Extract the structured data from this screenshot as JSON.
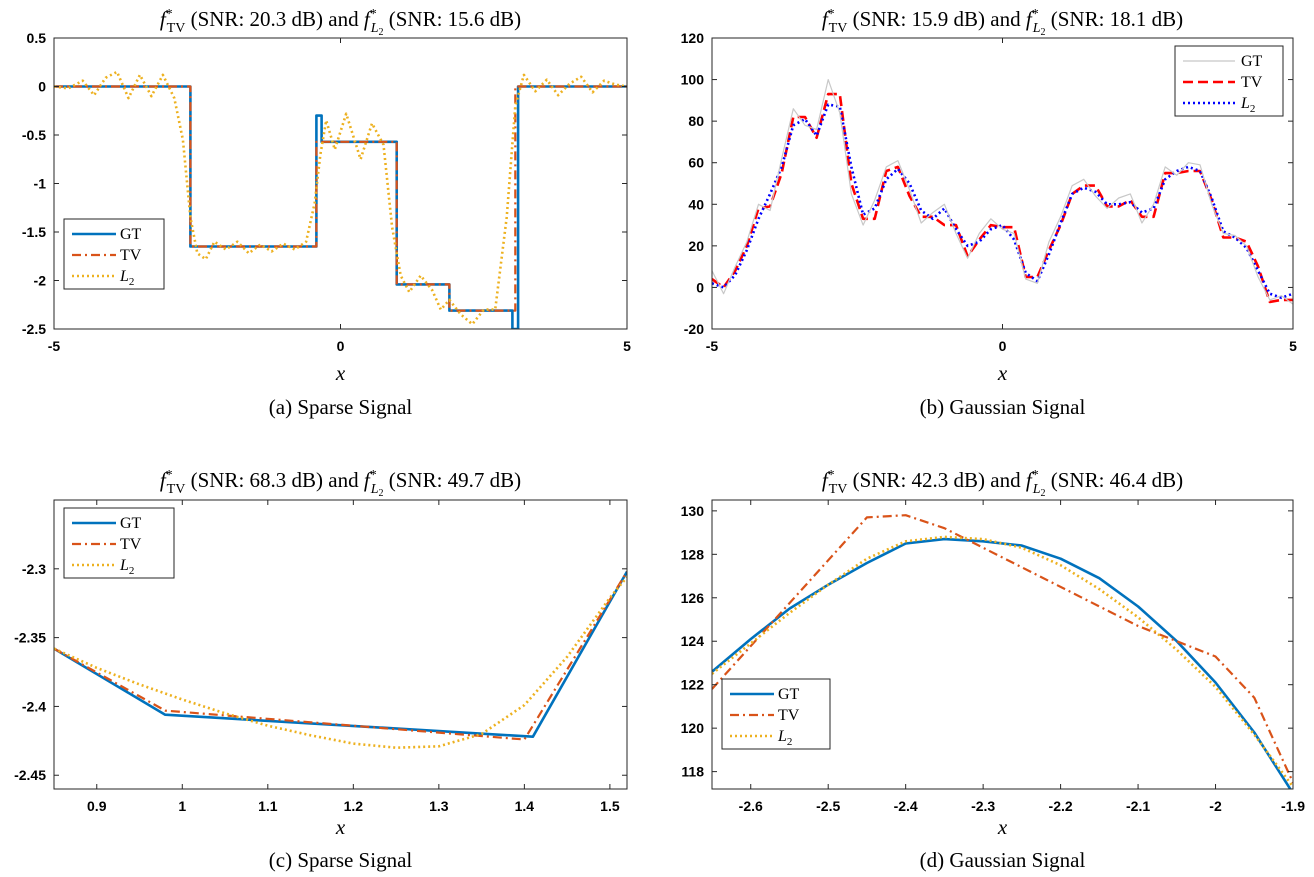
{
  "colors": {
    "gt": "#0072BD",
    "tv": "#D95319",
    "l2": "#EDB120",
    "gt_gray": "#c8c8c8",
    "tv_red": "#ff0000",
    "l2_blue": "#0000ff"
  },
  "chart_data": [
    {
      "type": "line",
      "title": "f*_TV (SNR: 20.3 dB) and f*_L2 (SNR: 15.6 dB)",
      "snr_tv": "20.3 dB",
      "snr_l2": "15.6 dB",
      "xlabel": "x",
      "caption": "(a) Sparse Signal",
      "xlim": [
        -5,
        5
      ],
      "ylim": [
        -2.5,
        0.5
      ],
      "xticks": [
        "-5",
        "0",
        "5"
      ],
      "yticks": [
        "0.5",
        "0",
        "-0.5",
        "-1",
        "-1.5",
        "-2",
        "-2.5"
      ],
      "legend": [
        "GT",
        "TV",
        "L2"
      ],
      "legend_position": "bottom-left",
      "series": [
        {
          "name": "GT",
          "style": "solid",
          "x": [
            -5,
            -2.62,
            -2.62,
            -0.42,
            -0.42,
            -0.33,
            -0.33,
            0.98,
            0.98,
            1.9,
            1.9,
            3.0,
            3.0,
            3.1,
            3.1,
            5
          ],
          "y": [
            0,
            0,
            -1.65,
            -1.65,
            -0.3,
            -0.3,
            -0.57,
            -0.57,
            -2.04,
            -2.04,
            -2.31,
            -2.31,
            -2.5,
            -2.5,
            0,
            0
          ]
        },
        {
          "name": "TV",
          "style": "dashdot",
          "x": [
            -5,
            -2.62,
            -2.62,
            -0.42,
            -0.42,
            0.98,
            0.98,
            1.9,
            1.9,
            3.05,
            3.05,
            5
          ],
          "y": [
            0,
            0,
            -1.65,
            -1.65,
            -0.57,
            -0.57,
            -2.04,
            -2.04,
            -2.31,
            -2.31,
            0,
            0
          ]
        },
        {
          "name": "L2",
          "style": "dotted",
          "x": [
            -5,
            -4.75,
            -4.5,
            -4.3,
            -4.1,
            -3.9,
            -3.7,
            -3.5,
            -3.3,
            -3.1,
            -2.9,
            -2.75,
            -2.62,
            -2.5,
            -2.35,
            -2.2,
            -2.0,
            -1.8,
            -1.6,
            -1.4,
            -1.2,
            -1.0,
            -0.8,
            -0.6,
            -0.45,
            -0.35,
            -0.25,
            -0.1,
            0.1,
            0.35,
            0.55,
            0.75,
            0.9,
            1.05,
            1.2,
            1.4,
            1.6,
            1.75,
            1.9,
            2.1,
            2.3,
            2.5,
            2.7,
            2.9,
            3.05,
            3.2,
            3.4,
            3.6,
            3.8,
            4.0,
            4.2,
            4.4,
            4.6,
            4.8,
            5.0
          ],
          "y": [
            0.0,
            -0.02,
            0.06,
            -0.09,
            0.09,
            0.15,
            -0.12,
            0.12,
            -0.1,
            0.12,
            -0.12,
            -0.55,
            -1.35,
            -1.72,
            -1.78,
            -1.6,
            -1.68,
            -1.6,
            -1.72,
            -1.63,
            -1.7,
            -1.62,
            -1.68,
            -1.6,
            -1.2,
            -0.7,
            -0.35,
            -0.65,
            -0.28,
            -0.75,
            -0.38,
            -0.6,
            -1.45,
            -1.95,
            -2.12,
            -1.95,
            -2.1,
            -2.3,
            -2.2,
            -2.35,
            -2.45,
            -2.3,
            -2.3,
            -1.35,
            -0.2,
            0.12,
            -0.05,
            0.07,
            -0.09,
            0.03,
            0.1,
            -0.06,
            0.06,
            0.02,
            0.0
          ]
        }
      ]
    },
    {
      "type": "line",
      "title": "f*_TV (SNR: 15.9 dB) and f*_L2 (SNR: 18.1 dB)",
      "snr_tv": "15.9 dB",
      "snr_l2": "18.1 dB",
      "xlabel": "x",
      "caption": "(b) Gaussian Signal",
      "xlim": [
        -5,
        5
      ],
      "ylim": [
        -20,
        120
      ],
      "xticks": [
        "-5",
        "0",
        "5"
      ],
      "yticks": [
        "120",
        "100",
        "80",
        "60",
        "40",
        "20",
        "0",
        "-20"
      ],
      "legend": [
        "GT",
        "TV",
        "L2"
      ],
      "legend_position": "top-right",
      "series": [
        {
          "name": "TV",
          "style": "dashed",
          "x": [
            -5.0,
            -4.8,
            -4.6,
            -4.4,
            -4.2,
            -4.0,
            -3.8,
            -3.6,
            -3.4,
            -3.2,
            -3.0,
            -2.8,
            -2.6,
            -2.4,
            -2.2,
            -2.0,
            -1.8,
            -1.6,
            -1.4,
            -1.2,
            -1.0,
            -0.8,
            -0.6,
            -0.4,
            -0.2,
            0.0,
            0.2,
            0.4,
            0.6,
            0.8,
            1.0,
            1.2,
            1.4,
            1.6,
            1.8,
            2.0,
            2.2,
            2.4,
            2.6,
            2.8,
            3.0,
            3.2,
            3.4,
            3.6,
            3.8,
            4.0,
            4.2,
            4.4,
            4.6,
            4.8,
            5.0
          ],
          "y": [
            4,
            0,
            8,
            20,
            38,
            39,
            55,
            82,
            82,
            72,
            93,
            93,
            50,
            33,
            33,
            56,
            58,
            44,
            34,
            34,
            30,
            30,
            15,
            23,
            30,
            29,
            29,
            5,
            5,
            18,
            30,
            45,
            49,
            49,
            39,
            39,
            42,
            34,
            34,
            55,
            55,
            56,
            56,
            42,
            24,
            24,
            22,
            10,
            -7,
            -6,
            -6
          ]
        },
        {
          "name": "L2",
          "style": "dotted",
          "x": [
            -5.0,
            -4.8,
            -4.6,
            -4.4,
            -4.2,
            -4.0,
            -3.8,
            -3.6,
            -3.4,
            -3.2,
            -3.0,
            -2.8,
            -2.6,
            -2.4,
            -2.2,
            -2.0,
            -1.8,
            -1.6,
            -1.4,
            -1.2,
            -1.0,
            -0.8,
            -0.6,
            -0.4,
            -0.2,
            0.0,
            0.2,
            0.4,
            0.6,
            0.8,
            1.0,
            1.2,
            1.4,
            1.6,
            1.8,
            2.0,
            2.2,
            2.4,
            2.6,
            2.8,
            3.0,
            3.2,
            3.4,
            3.6,
            3.8,
            4.0,
            4.2,
            4.4,
            4.6,
            4.8,
            5.0
          ],
          "y": [
            2,
            0,
            6,
            18,
            33,
            45,
            58,
            78,
            81,
            73,
            88,
            87,
            58,
            35,
            38,
            52,
            57,
            50,
            37,
            33,
            38,
            28,
            20,
            22,
            28,
            30,
            23,
            7,
            3,
            16,
            31,
            45,
            48,
            46,
            40,
            40,
            41,
            36,
            38,
            52,
            56,
            58,
            56,
            43,
            27,
            24,
            19,
            8,
            -3,
            -5,
            -3
          ]
        },
        {
          "name": "GT",
          "style": "solid-thin",
          "x": [
            -5.0,
            -4.8,
            -4.6,
            -4.4,
            -4.2,
            -4.0,
            -3.8,
            -3.6,
            -3.4,
            -3.2,
            -3.0,
            -2.8,
            -2.6,
            -2.4,
            -2.2,
            -2.0,
            -1.8,
            -1.6,
            -1.4,
            -1.2,
            -1.0,
            -0.8,
            -0.6,
            -0.4,
            -0.2,
            0.0,
            0.2,
            0.4,
            0.6,
            0.8,
            1.0,
            1.2,
            1.4,
            1.6,
            1.8,
            2.0,
            2.2,
            2.4,
            2.6,
            2.8,
            3.0,
            3.2,
            3.4,
            3.6,
            3.8,
            4.0,
            4.2,
            4.4,
            4.6,
            4.8,
            5.0
          ],
          "y": [
            8,
            -3,
            10,
            22,
            40,
            37,
            62,
            86,
            78,
            76,
            100,
            84,
            45,
            30,
            42,
            58,
            61,
            47,
            31,
            36,
            40,
            26,
            14,
            26,
            33,
            28,
            26,
            4,
            2,
            22,
            34,
            49,
            52,
            44,
            38,
            43,
            45,
            31,
            40,
            58,
            54,
            60,
            59,
            40,
            26,
            25,
            20,
            5,
            -6,
            -4,
            -8
          ]
        }
      ]
    },
    {
      "type": "line",
      "title": "f*_TV (SNR: 68.3 dB) and f*_L2 (SNR: 49.7 dB)",
      "snr_tv": "68.3 dB",
      "snr_l2": "49.7 dB",
      "xlabel": "x",
      "caption": "(c) Sparse Signal",
      "xlim": [
        0.85,
        1.52
      ],
      "ylim": [
        -2.46,
        -2.25
      ],
      "xticks": [
        "0.9",
        "1",
        "1.1",
        "1.2",
        "1.3",
        "1.4",
        "1.5"
      ],
      "yticks": [
        "-2.3",
        "-2.35",
        "-2.4",
        "-2.45"
      ],
      "legend": [
        "GT",
        "TV",
        "L2"
      ],
      "legend_position": "top-left",
      "series": [
        {
          "name": "GT",
          "style": "solid",
          "x": [
            0.85,
            0.98,
            1.41,
            1.52
          ],
          "y": [
            -2.358,
            -2.406,
            -2.422,
            -2.302
          ]
        },
        {
          "name": "TV",
          "style": "dashdot",
          "x": [
            0.85,
            0.98,
            1.4,
            1.52
          ],
          "y": [
            -2.358,
            -2.403,
            -2.424,
            -2.302
          ]
        },
        {
          "name": "L2",
          "style": "dotted",
          "x": [
            0.85,
            0.9,
            0.95,
            1.0,
            1.05,
            1.1,
            1.15,
            1.2,
            1.25,
            1.3,
            1.35,
            1.4,
            1.45,
            1.5,
            1.52
          ],
          "y": [
            -2.358,
            -2.372,
            -2.384,
            -2.395,
            -2.405,
            -2.414,
            -2.421,
            -2.427,
            -2.43,
            -2.429,
            -2.42,
            -2.399,
            -2.364,
            -2.321,
            -2.306
          ]
        }
      ]
    },
    {
      "type": "line",
      "title": "f*_TV (SNR: 42.3 dB) and f*_L2 (SNR: 46.4 dB)",
      "snr_tv": "42.3 dB",
      "snr_l2": "46.4 dB",
      "xlabel": "x",
      "caption": "(d) Gaussian Signal",
      "xlim": [
        -2.65,
        -1.9
      ],
      "ylim": [
        117.2,
        130.5
      ],
      "xticks": [
        "-2.6",
        "-2.5",
        "-2.4",
        "-2.3",
        "-2.2",
        "-2.1",
        "-2",
        "-1.9"
      ],
      "yticks": [
        "130",
        "128",
        "126",
        "124",
        "122",
        "120",
        "118"
      ],
      "legend": [
        "GT",
        "TV",
        "L2"
      ],
      "legend_position": "bottom-left",
      "series": [
        {
          "name": "GT",
          "style": "solid",
          "x": [
            -2.65,
            -2.6,
            -2.55,
            -2.5,
            -2.45,
            -2.4,
            -2.35,
            -2.3,
            -2.25,
            -2.2,
            -2.15,
            -2.1,
            -2.05,
            -2.0,
            -1.95,
            -1.9
          ],
          "y": [
            122.6,
            124.1,
            125.5,
            126.6,
            127.6,
            128.5,
            128.7,
            128.6,
            128.4,
            127.8,
            126.9,
            125.6,
            124.0,
            122.1,
            119.8,
            117.0
          ]
        },
        {
          "name": "TV",
          "style": "dashdot",
          "x": [
            -2.65,
            -2.45,
            -2.4,
            -2.35,
            -2.1,
            -2.0,
            -1.95,
            -1.9
          ],
          "y": [
            121.8,
            129.7,
            129.8,
            129.2,
            124.7,
            123.3,
            121.4,
            117.5
          ]
        },
        {
          "name": "L2",
          "style": "dotted",
          "x": [
            -2.65,
            -2.6,
            -2.55,
            -2.5,
            -2.45,
            -2.4,
            -2.35,
            -2.3,
            -2.25,
            -2.2,
            -2.15,
            -2.1,
            -2.05,
            -2.0,
            -1.95,
            -1.9
          ],
          "y": [
            122.5,
            123.9,
            125.3,
            126.6,
            127.8,
            128.6,
            128.8,
            128.7,
            128.3,
            127.5,
            126.4,
            125.1,
            123.6,
            121.9,
            119.7,
            117.3
          ]
        }
      ]
    }
  ]
}
